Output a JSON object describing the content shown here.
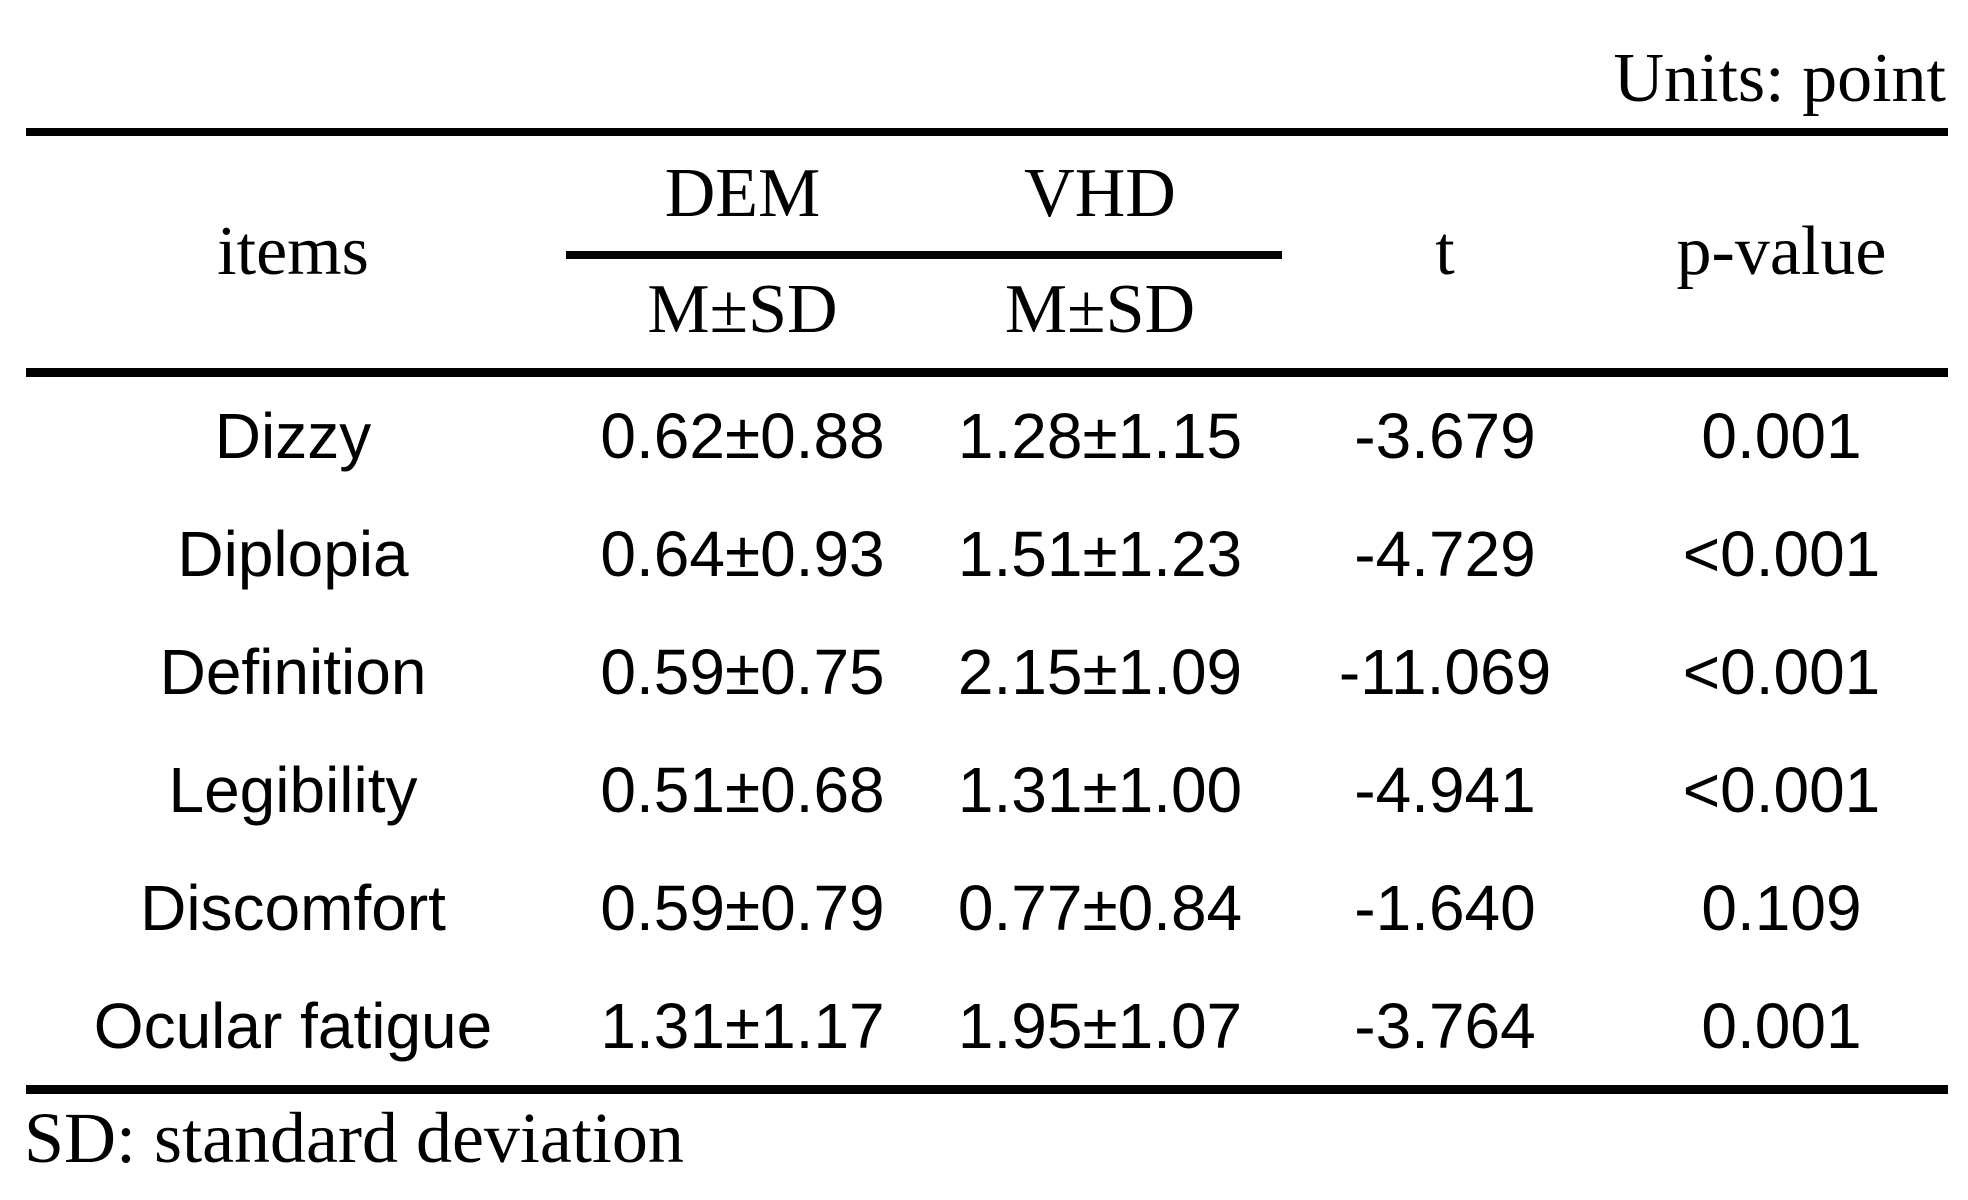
{
  "units_label": "Units: point",
  "table": {
    "header": {
      "items": "items",
      "group_dem": "DEM",
      "group_vhd": "VHD",
      "sub_dem": "M±SD",
      "sub_vhd": "M±SD",
      "t": "t",
      "p": "p-value"
    },
    "rows": [
      {
        "item": "Dizzy",
        "dem": "0.62±0.88",
        "vhd": "1.28±1.15",
        "t": "-3.679",
        "p": "0.001"
      },
      {
        "item": "Diplopia",
        "dem": "0.64±0.93",
        "vhd": "1.51±1.23",
        "t": "-4.729",
        "p": "<0.001"
      },
      {
        "item": "Definition",
        "dem": "0.59±0.75",
        "vhd": "2.15±1.09",
        "t": "-11.069",
        "p": "<0.001"
      },
      {
        "item": "Legibility",
        "dem": "0.51±0.68",
        "vhd": "1.31±1.00",
        "t": "-4.941",
        "p": "<0.001"
      },
      {
        "item": "Discomfort",
        "dem": "0.59±0.79",
        "vhd": "0.77±0.84",
        "t": "-1.640",
        "p": "0.109"
      },
      {
        "item": "Ocular fatigue",
        "dem": "1.31±1.17",
        "vhd": "1.95±1.07",
        "t": "-3.764",
        "p": "0.001"
      }
    ]
  },
  "footnote": "SD: standard deviation",
  "colors": {
    "text": "#000000",
    "background": "#ffffff",
    "rule": "#000000"
  }
}
